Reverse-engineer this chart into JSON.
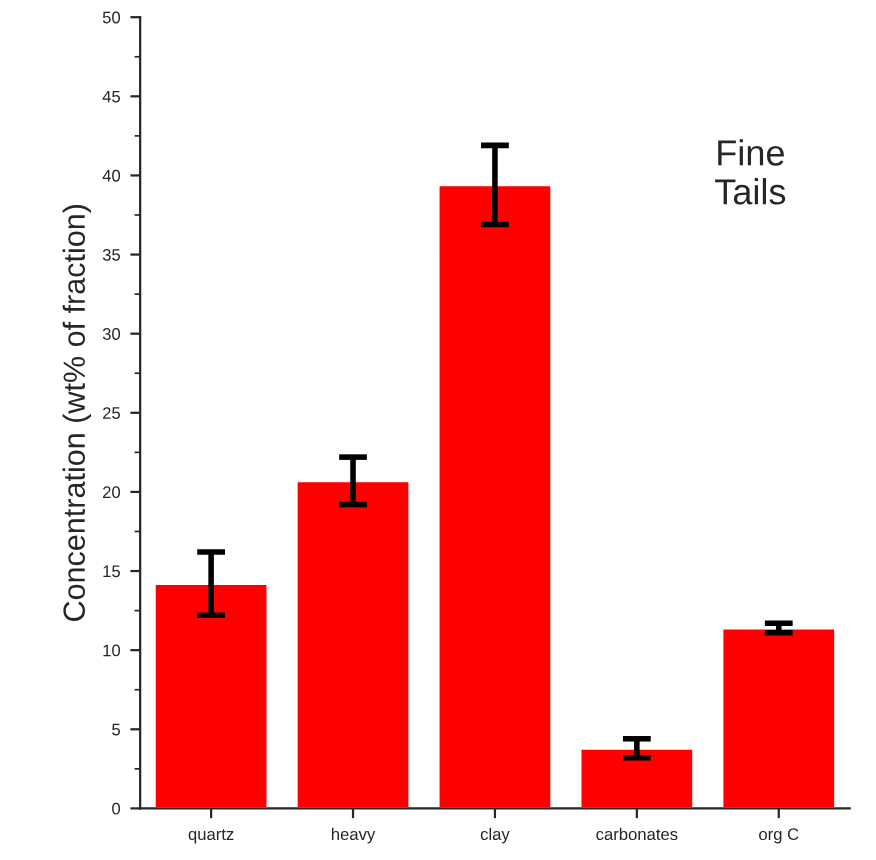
{
  "chart_data": {
    "type": "bar",
    "ylabel": "Concentration (wt% of fraction)",
    "categories": [
      "quartz",
      "heavy",
      "clay",
      "carbonates",
      "org C"
    ],
    "values": [
      14.2,
      20.7,
      39.4,
      3.8,
      11.4
    ],
    "errors": [
      2.0,
      1.5,
      2.5,
      0.6,
      0.3
    ],
    "color": "#ff0000",
    "ylim": [
      0,
      50
    ],
    "yticks": [
      0,
      5,
      10,
      15,
      20,
      25,
      30,
      35,
      40,
      45,
      50
    ],
    "grid": false,
    "annotations": [
      "Fine\nTails"
    ]
  }
}
